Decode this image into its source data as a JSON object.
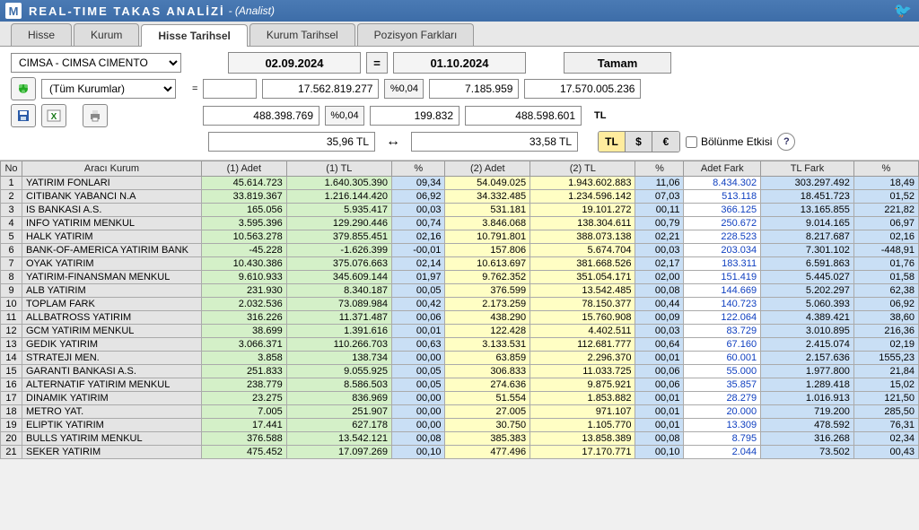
{
  "title": {
    "main": "REAL-TIME TAKAS ANALİZİ",
    "sub": "- (Analist)"
  },
  "tabs": [
    "Hisse",
    "Kurum",
    "Hisse Tarihsel",
    "Kurum Tarihsel",
    "Pozisyon Farkları"
  ],
  "active_tab": 2,
  "stock_select": "CIMSA - CIMSA CIMENTO",
  "date1": "02.09.2024",
  "date2": "01.10.2024",
  "ok_label": "Tamam",
  "org_select": "(Tüm Kurumlar)",
  "summary": {
    "r1": {
      "a": "17.562.819.277",
      "p": "%0,04",
      "b": "7.185.959",
      "c": "17.570.005.236"
    },
    "r2": {
      "a": "488.398.769",
      "p": "%0,04",
      "b": "199.832",
      "c": "488.598.601",
      "unit": "TL"
    }
  },
  "price1": "35,96 TL",
  "price2": "33,58 TL",
  "currency_buttons": [
    "TL",
    "$",
    "€"
  ],
  "split_label": "Bölünme Etkisi",
  "columns": [
    "No",
    "Aracı Kurum",
    "(1) Adet",
    "(1) TL",
    "%",
    "(2) Adet",
    "(2) TL",
    "%",
    "Adet Fark",
    "TL Fark",
    "%"
  ],
  "rows": [
    {
      "no": "1",
      "name": "YATIRIM FONLARI",
      "a1": "45.614.723",
      "t1": "1.640.305.390",
      "p1": "09,34",
      "a2": "54.049.025",
      "t2": "1.943.602.883",
      "p2": "11,06",
      "af": "8.434.302",
      "tf": "303.297.492",
      "pf": "18,49"
    },
    {
      "no": "2",
      "name": "CITIBANK YABANCI N.A",
      "a1": "33.819.367",
      "t1": "1.216.144.420",
      "p1": "06,92",
      "a2": "34.332.485",
      "t2": "1.234.596.142",
      "p2": "07,03",
      "af": "513.118",
      "tf": "18.451.723",
      "pf": "01,52"
    },
    {
      "no": "3",
      "name": "IS BANKASI A.S.",
      "a1": "165.056",
      "t1": "5.935.417",
      "p1": "00,03",
      "a2": "531.181",
      "t2": "19.101.272",
      "p2": "00,11",
      "af": "366.125",
      "tf": "13.165.855",
      "pf": "221,82"
    },
    {
      "no": "4",
      "name": "INFO YATIRIM MENKUL",
      "a1": "3.595.396",
      "t1": "129.290.446",
      "p1": "00,74",
      "a2": "3.846.068",
      "t2": "138.304.611",
      "p2": "00,79",
      "af": "250.672",
      "tf": "9.014.165",
      "pf": "06,97"
    },
    {
      "no": "5",
      "name": "HALK YATIRIM",
      "a1": "10.563.278",
      "t1": "379.855.451",
      "p1": "02,16",
      "a2": "10.791.801",
      "t2": "388.073.138",
      "p2": "02,21",
      "af": "228.523",
      "tf": "8.217.687",
      "pf": "02,16"
    },
    {
      "no": "6",
      "name": "BANK-OF-AMERICA YATIRIM BANK",
      "a1": "-45.228",
      "t1": "-1.626.399",
      "p1": "-00,01",
      "a2": "157.806",
      "t2": "5.674.704",
      "p2": "00,03",
      "af": "203.034",
      "tf": "7.301.102",
      "pf": "-448,91"
    },
    {
      "no": "7",
      "name": "OYAK YATIRIM",
      "a1": "10.430.386",
      "t1": "375.076.663",
      "p1": "02,14",
      "a2": "10.613.697",
      "t2": "381.668.526",
      "p2": "02,17",
      "af": "183.311",
      "tf": "6.591.863",
      "pf": "01,76"
    },
    {
      "no": "8",
      "name": "YATIRIM-FINANSMAN MENKUL",
      "a1": "9.610.933",
      "t1": "345.609.144",
      "p1": "01,97",
      "a2": "9.762.352",
      "t2": "351.054.171",
      "p2": "02,00",
      "af": "151.419",
      "tf": "5.445.027",
      "pf": "01,58"
    },
    {
      "no": "9",
      "name": "ALB YATIRIM",
      "a1": "231.930",
      "t1": "8.340.187",
      "p1": "00,05",
      "a2": "376.599",
      "t2": "13.542.485",
      "p2": "00,08",
      "af": "144.669",
      "tf": "5.202.297",
      "pf": "62,38"
    },
    {
      "no": "10",
      "name": "TOPLAM FARK",
      "a1": "2.032.536",
      "t1": "73.089.984",
      "p1": "00,42",
      "a2": "2.173.259",
      "t2": "78.150.377",
      "p2": "00,44",
      "af": "140.723",
      "tf": "5.060.393",
      "pf": "06,92"
    },
    {
      "no": "11",
      "name": "ALLBATROSS YATIRIM",
      "a1": "316.226",
      "t1": "11.371.487",
      "p1": "00,06",
      "a2": "438.290",
      "t2": "15.760.908",
      "p2": "00,09",
      "af": "122.064",
      "tf": "4.389.421",
      "pf": "38,60"
    },
    {
      "no": "12",
      "name": "GCM YATIRIM MENKUL",
      "a1": "38.699",
      "t1": "1.391.616",
      "p1": "00,01",
      "a2": "122.428",
      "t2": "4.402.511",
      "p2": "00,03",
      "af": "83.729",
      "tf": "3.010.895",
      "pf": "216,36"
    },
    {
      "no": "13",
      "name": "GEDIK YATIRIM",
      "a1": "3.066.371",
      "t1": "110.266.703",
      "p1": "00,63",
      "a2": "3.133.531",
      "t2": "112.681.777",
      "p2": "00,64",
      "af": "67.160",
      "tf": "2.415.074",
      "pf": "02,19"
    },
    {
      "no": "14",
      "name": "STRATEJI MEN.",
      "a1": "3.858",
      "t1": "138.734",
      "p1": "00,00",
      "a2": "63.859",
      "t2": "2.296.370",
      "p2": "00,01",
      "af": "60.001",
      "tf": "2.157.636",
      "pf": "1555,23"
    },
    {
      "no": "15",
      "name": "GARANTI BANKASI A.S.",
      "a1": "251.833",
      "t1": "9.055.925",
      "p1": "00,05",
      "a2": "306.833",
      "t2": "11.033.725",
      "p2": "00,06",
      "af": "55.000",
      "tf": "1.977.800",
      "pf": "21,84"
    },
    {
      "no": "16",
      "name": "ALTERNATIF YATIRIM MENKUL",
      "a1": "238.779",
      "t1": "8.586.503",
      "p1": "00,05",
      "a2": "274.636",
      "t2": "9.875.921",
      "p2": "00,06",
      "af": "35.857",
      "tf": "1.289.418",
      "pf": "15,02"
    },
    {
      "no": "17",
      "name": "DINAMIK YATIRIM",
      "a1": "23.275",
      "t1": "836.969",
      "p1": "00,00",
      "a2": "51.554",
      "t2": "1.853.882",
      "p2": "00,01",
      "af": "28.279",
      "tf": "1.016.913",
      "pf": "121,50"
    },
    {
      "no": "18",
      "name": "METRO YAT.",
      "a1": "7.005",
      "t1": "251.907",
      "p1": "00,00",
      "a2": "27.005",
      "t2": "971.107",
      "p2": "00,01",
      "af": "20.000",
      "tf": "719.200",
      "pf": "285,50"
    },
    {
      "no": "19",
      "name": "ELIPTIK YATIRIM",
      "a1": "17.441",
      "t1": "627.178",
      "p1": "00,00",
      "a2": "30.750",
      "t2": "1.105.770",
      "p2": "00,01",
      "af": "13.309",
      "tf": "478.592",
      "pf": "76,31"
    },
    {
      "no": "20",
      "name": "BULLS YATIRIM MENKUL",
      "a1": "376.588",
      "t1": "13.542.121",
      "p1": "00,08",
      "a2": "385.383",
      "t2": "13.858.389",
      "p2": "00,08",
      "af": "8.795",
      "tf": "316.268",
      "pf": "02,34"
    },
    {
      "no": "21",
      "name": "SEKER YATIRIM",
      "a1": "475.452",
      "t1": "17.097.269",
      "p1": "00,10",
      "a2": "477.496",
      "t2": "17.170.771",
      "p2": "00,10",
      "af": "2.044",
      "tf": "73.502",
      "pf": "00,43"
    }
  ],
  "colors": {
    "green": "#d4f0c8",
    "yellow": "#fffec4",
    "blue": "#c9dff5",
    "grey": "#e4e4e4",
    "linkblue": "#1040c0"
  }
}
